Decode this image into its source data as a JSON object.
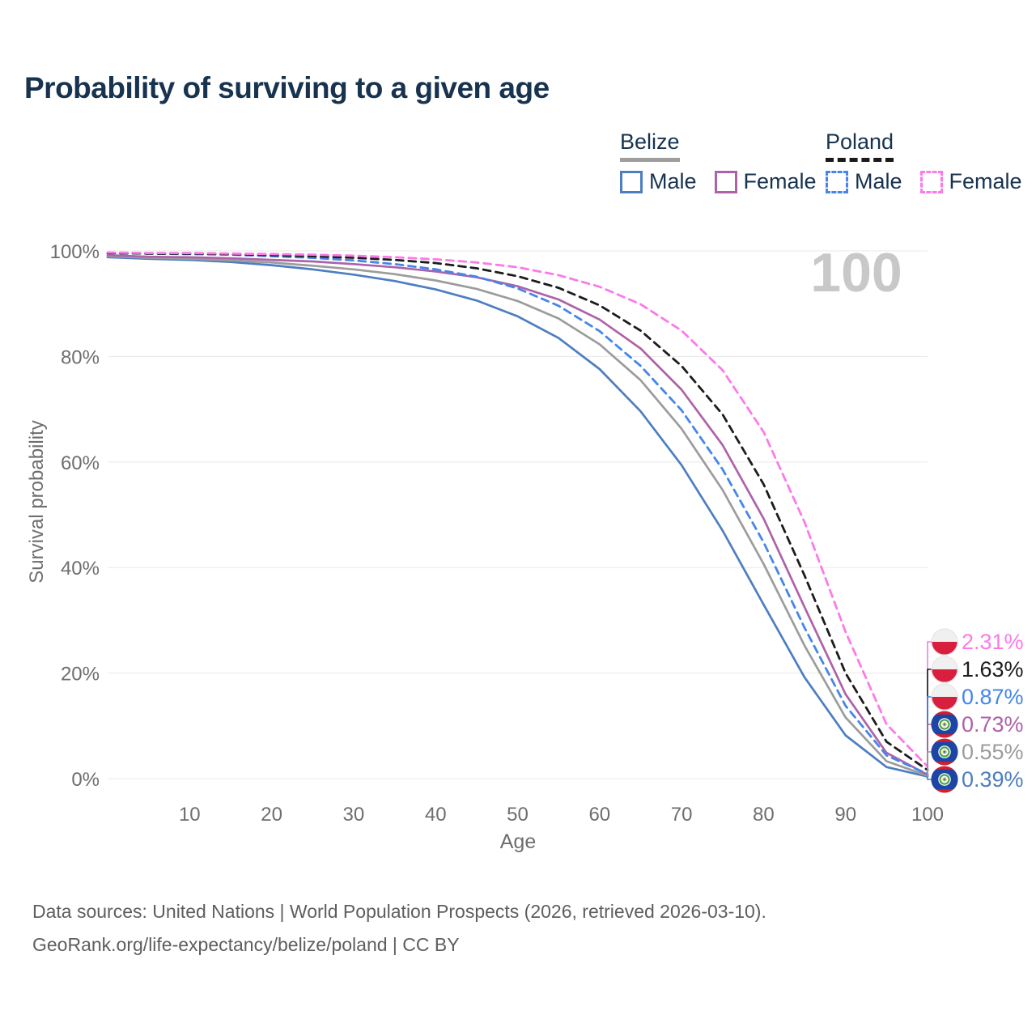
{
  "title": "Probability of surviving to a given age",
  "legend": {
    "groups": [
      {
        "country": "Belize",
        "line_style": "solid",
        "underline_color": "#9e9e9e",
        "items": [
          {
            "label": "Male",
            "color": "#4d7ec0"
          },
          {
            "label": "Female",
            "color": "#ae62a8"
          }
        ]
      },
      {
        "country": "Poland",
        "line_style": "dashed",
        "underline_color": "#1a1a1a",
        "items": [
          {
            "label": "Male",
            "color": "#4585ec"
          },
          {
            "label": "Female",
            "color": "#fb7ae8"
          }
        ]
      }
    ]
  },
  "chart_data": {
    "type": "line",
    "title": "Probability of surviving to a given age",
    "xlabel": "Age",
    "ylabel": "Survival probability",
    "watermark": "100",
    "grid": true,
    "xlim": [
      0,
      100
    ],
    "ylim": [
      0,
      100
    ],
    "x_ticks": [
      10,
      20,
      30,
      40,
      50,
      60,
      70,
      80,
      90,
      100
    ],
    "y_ticks": [
      0,
      20,
      40,
      60,
      80,
      100
    ],
    "y_tick_suffix": "%",
    "x": [
      0,
      5,
      10,
      15,
      20,
      25,
      30,
      35,
      40,
      45,
      50,
      55,
      60,
      65,
      70,
      75,
      80,
      85,
      90,
      95,
      100
    ],
    "series": [
      {
        "name": "Belize Male",
        "country": "Belize",
        "sex": "Male",
        "color": "#4d7ec0",
        "dashed": false,
        "flag": "belize",
        "end_label": "0.39%",
        "values": [
          98.8,
          98.5,
          98.3,
          97.9,
          97.3,
          96.5,
          95.5,
          94.3,
          92.7,
          90.6,
          87.6,
          83.5,
          77.6,
          69.6,
          59.4,
          47.0,
          33.0,
          19.2,
          8.2,
          2.2,
          0.39
        ]
      },
      {
        "name": "Belize Both sexes",
        "country": "Belize",
        "sex": "Both",
        "color": "#9c9c9c",
        "dashed": false,
        "flag": "belize",
        "end_label": "0.55%",
        "values": [
          99.0,
          98.7,
          98.5,
          98.2,
          97.8,
          97.2,
          96.5,
          95.6,
          94.4,
          92.8,
          90.5,
          87.2,
          82.3,
          75.5,
          66.3,
          54.7,
          40.7,
          25.2,
          11.6,
          3.3,
          0.55
        ]
      },
      {
        "name": "Belize Female",
        "country": "Belize",
        "sex": "Female",
        "color": "#ae62a8",
        "dashed": false,
        "flag": "belize",
        "end_label": "0.73%",
        "values": [
          99.2,
          98.9,
          98.8,
          98.6,
          98.3,
          98.0,
          97.5,
          96.9,
          96.1,
          95.0,
          93.3,
          90.8,
          87.0,
          81.5,
          73.7,
          63.2,
          49.3,
          32.5,
          16.0,
          4.9,
          0.73
        ]
      },
      {
        "name": "Poland Male",
        "country": "Poland",
        "sex": "Male",
        "color": "#4585ec",
        "dashed": true,
        "flag": "poland",
        "end_label": "0.87%",
        "values": [
          99.6,
          99.5,
          99.4,
          99.3,
          99.0,
          98.7,
          98.2,
          97.5,
          96.5,
          95.1,
          92.9,
          89.6,
          84.8,
          78.2,
          69.8,
          58.6,
          44.8,
          28.6,
          13.8,
          4.4,
          0.87
        ]
      },
      {
        "name": "Poland Both sexes",
        "country": "Poland",
        "sex": "Both",
        "color": "#1c1c1c",
        "dashed": true,
        "flag": "poland",
        "end_label": "1.63%",
        "values": [
          99.6,
          99.5,
          99.5,
          99.4,
          99.2,
          99.0,
          98.7,
          98.3,
          97.7,
          96.7,
          95.2,
          93.0,
          89.7,
          84.9,
          78.2,
          69.0,
          55.8,
          38.5,
          20.0,
          7.0,
          1.63
        ]
      },
      {
        "name": "Poland Female",
        "country": "Poland",
        "sex": "Female",
        "color": "#fb7ae8",
        "dashed": true,
        "flag": "poland",
        "end_label": "2.31%",
        "values": [
          99.7,
          99.6,
          99.6,
          99.5,
          99.4,
          99.3,
          99.1,
          98.8,
          98.4,
          97.8,
          96.9,
          95.4,
          93.2,
          89.9,
          84.9,
          77.4,
          65.7,
          48.6,
          27.8,
          10.3,
          2.31
        ]
      }
    ]
  },
  "footer": {
    "line1": "Data sources: United Nations | World Population Prospects (2026, retrieved 2026-03-10).",
    "line2": "GeoRank.org/life-expectancy/belize/poland | CC BY"
  }
}
